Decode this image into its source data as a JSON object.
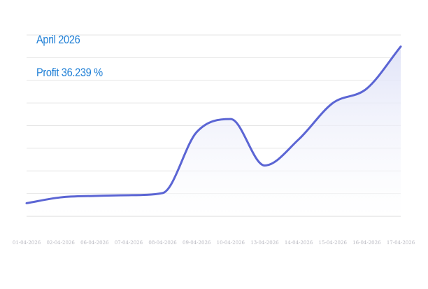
{
  "colors": {
    "line": "#5b65d4",
    "area_top": "#dfe2f7",
    "area_bottom": "#ffffff",
    "grid": "#e6e6e6",
    "axis": "#d9d9d9",
    "title": "#1f7fd6"
  },
  "chart_data": {
    "type": "area",
    "title": "April 2026",
    "subtitle": "Profit 36.239 %",
    "xlabel": "",
    "ylabel": "",
    "x": [
      "01-04-2026",
      "02-04-2026",
      "06-04-2026",
      "07-04-2026",
      "08-04-2026",
      "09-04-2026",
      "10-04-2026",
      "13-04-2026",
      "14-04-2026",
      "15-04-2026",
      "16-04-2026",
      "17-04-2026"
    ],
    "series": [
      {
        "values": [
          0.4,
          0.8,
          0.9,
          0.95,
          1.1,
          5.3,
          6.2,
          3.0,
          4.8,
          7.3,
          8.3,
          11.2
        ]
      }
    ],
    "ylim": [
      -0.5,
      12
    ],
    "grid": true,
    "legend": "none",
    "y_tick_labels": false
  }
}
